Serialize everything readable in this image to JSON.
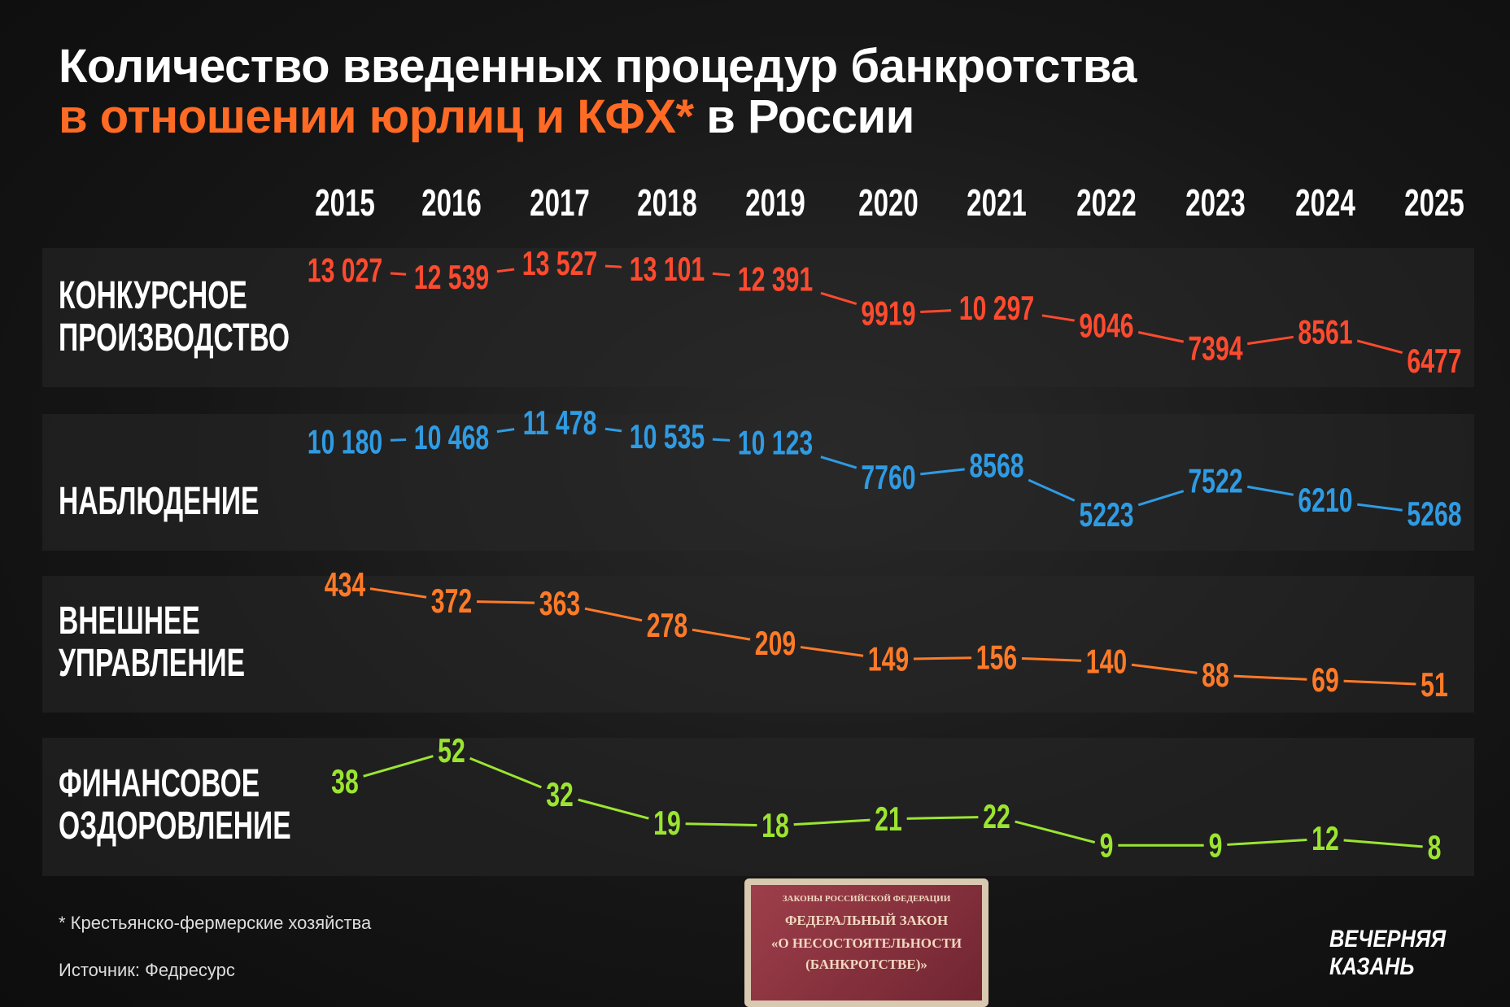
{
  "title_line1": "Количество введенных процедур банкротства",
  "title_line2_accent": "в отношении юрлиц и КФХ*",
  "title_line2_rest": " в России",
  "footnote": "* Крестьянско-фермерские хозяйства",
  "source": "Источник: Федресурс",
  "logo": {
    "line1": "ВЕЧЕРНЯЯ",
    "line2": "КАЗАНЬ"
  },
  "book": {
    "line1": "ЗАКОНЫ РОССИЙСКОЙ ФЕДЕРАЦИИ",
    "line2": "ФЕДЕРАЛЬНЫЙ ЗАКОН",
    "line3": "«О НЕСОСТОЯТЕЛЬНОСТИ",
    "line4": "(БАНКРОТСТВЕ)»"
  },
  "chart_data": {
    "type": "line",
    "title": "Количество введенных процедур банкротства в отношении юрлиц и КФХ* в России",
    "x": [
      "2015",
      "2016",
      "2017",
      "2018",
      "2019",
      "2020",
      "2021",
      "2022",
      "2023",
      "2024",
      "2025"
    ],
    "series": [
      {
        "name": "КОНКУРСНОЕ ПРОИЗВОДСТВО",
        "label_lines": [
          "КОНКУРСНОЕ",
          "ПРОИЗВОДСТВО"
        ],
        "color": "#ff4a2e",
        "values": [
          13027,
          12539,
          13527,
          13101,
          12391,
          9919,
          10297,
          9046,
          7394,
          8561,
          6477
        ],
        "labels": [
          "13 027",
          "12 539",
          "13 527",
          "13 101",
          "12 391",
          "9919",
          "10 297",
          "9046",
          "7394",
          "8561",
          "6477"
        ]
      },
      {
        "name": "НАБЛЮДЕНИЕ",
        "label_lines": [
          "НАБЛЮДЕНИЕ"
        ],
        "color": "#2f9be3",
        "values": [
          10180,
          10468,
          11478,
          10535,
          10123,
          7760,
          8568,
          5223,
          7522,
          6210,
          5268
        ],
        "labels": [
          "10 180",
          "10 468",
          "11 478",
          "10 535",
          "10 123",
          "7760",
          "8568",
          "5223",
          "7522",
          "6210",
          "5268"
        ]
      },
      {
        "name": "ВНЕШНЕЕ УПРАВЛЕНИЕ",
        "label_lines": [
          "ВНЕШНЕЕ",
          "УПРАВЛЕНИЕ"
        ],
        "color": "#ff7a28",
        "values": [
          434,
          372,
          363,
          278,
          209,
          149,
          156,
          140,
          88,
          69,
          51
        ],
        "labels": [
          "434",
          "372",
          "363",
          "278",
          "209",
          "149",
          "156",
          "140",
          "88",
          "69",
          "51"
        ]
      },
      {
        "name": "ФИНАНСОВОЕ ОЗДОРОВЛЕНИЕ",
        "label_lines": [
          "ФИНАНСОВОЕ",
          "ОЗДОРОВЛЕНИЕ"
        ],
        "color": "#9be530",
        "values": [
          38,
          52,
          32,
          19,
          18,
          21,
          22,
          9,
          9,
          12,
          8
        ],
        "labels": [
          "38",
          "52",
          "32",
          "19",
          "18",
          "21",
          "22",
          "9",
          "9",
          "12",
          "8"
        ]
      }
    ],
    "legend": "left-row-labels",
    "grid": false
  }
}
